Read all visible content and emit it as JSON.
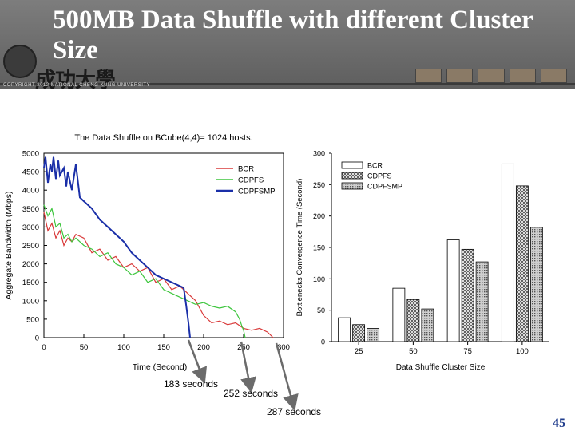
{
  "slide": {
    "title": "500MB Data Shuffle with different Cluster Size",
    "university_name": "成功大學",
    "copyright": "COPYRIGHT 2012 NATIONAL CHENG KUNG UNIVERSITY",
    "page_number": "45",
    "callouts": [
      "183 seconds",
      "252 seconds",
      "287 seconds"
    ]
  },
  "chart_data": [
    {
      "type": "line",
      "title": "The Data Shuffle on BCube(4,4)= 1024 hosts.",
      "xlabel": "Time (Second)",
      "ylabel": "Aggregate Bandwidth (Mbps)",
      "xlim": [
        0,
        300
      ],
      "ylim": [
        0,
        5000
      ],
      "xticks": [
        0,
        50,
        100,
        150,
        200,
        250,
        300
      ],
      "yticks": [
        0,
        500,
        1000,
        1500,
        2000,
        2500,
        3000,
        3500,
        4000,
        4500,
        5000
      ],
      "legend_position": "top-right",
      "series": [
        {
          "name": "BCR",
          "color": "#d93a3a",
          "x": [
            0,
            5,
            10,
            15,
            20,
            25,
            30,
            35,
            40,
            50,
            60,
            70,
            80,
            90,
            100,
            110,
            120,
            130,
            140,
            150,
            160,
            170,
            180,
            190,
            200,
            210,
            220,
            230,
            240,
            250,
            260,
            270,
            280,
            287
          ],
          "y": [
            3400,
            2900,
            3100,
            2700,
            2900,
            2500,
            2700,
            2600,
            2800,
            2700,
            2300,
            2400,
            2100,
            2200,
            1900,
            2000,
            1800,
            1900,
            1500,
            1600,
            1300,
            1400,
            1200,
            1000,
            600,
            400,
            450,
            350,
            400,
            250,
            200,
            250,
            150,
            0
          ]
        },
        {
          "name": "CDPFS",
          "color": "#3ec63e",
          "x": [
            0,
            5,
            10,
            15,
            20,
            25,
            30,
            35,
            40,
            50,
            60,
            70,
            80,
            90,
            100,
            110,
            120,
            130,
            140,
            150,
            160,
            170,
            180,
            190,
            200,
            210,
            220,
            230,
            240,
            245,
            248,
            250,
            252
          ],
          "y": [
            3600,
            3300,
            3500,
            3000,
            3100,
            2700,
            2800,
            2600,
            2700,
            2500,
            2400,
            2200,
            2300,
            2000,
            1900,
            1700,
            1800,
            1500,
            1600,
            1300,
            1200,
            1100,
            1000,
            900,
            950,
            850,
            800,
            850,
            700,
            500,
            300,
            200,
            0
          ]
        },
        {
          "name": "CDPFSMP",
          "color": "#1a2fa8",
          "x": [
            0,
            2,
            5,
            8,
            10,
            12,
            15,
            18,
            20,
            25,
            28,
            30,
            35,
            40,
            45,
            50,
            60,
            70,
            80,
            90,
            100,
            110,
            120,
            130,
            140,
            150,
            160,
            165,
            170,
            175,
            178,
            181,
            183
          ],
          "y": [
            4600,
            4900,
            4200,
            4700,
            4500,
            4900,
            4300,
            4800,
            4400,
            4600,
            4100,
            4500,
            4000,
            4700,
            3800,
            3700,
            3500,
            3200,
            3000,
            2800,
            2600,
            2300,
            2100,
            1900,
            1700,
            1600,
            1500,
            1450,
            1400,
            1350,
            900,
            400,
            0
          ]
        }
      ]
    },
    {
      "type": "bar",
      "xlabel": "Data Shuffle Cluster Size",
      "ylabel": "Bottlenecks Convergence Time (Second)",
      "ylim": [
        0,
        300
      ],
      "yticks": [
        0,
        50,
        100,
        150,
        200,
        250,
        300
      ],
      "categories": [
        "25",
        "50",
        "75",
        "100"
      ],
      "legend_position": "top-left",
      "series": [
        {
          "name": "BCR",
          "pattern": "white",
          "values": [
            38,
            85,
            162,
            283
          ]
        },
        {
          "name": "CDPFS",
          "pattern": "cross-hatch",
          "values": [
            27,
            67,
            147,
            248
          ]
        },
        {
          "name": "CDPFSMP",
          "pattern": "dots",
          "values": [
            21,
            52,
            127,
            182
          ]
        }
      ]
    }
  ]
}
